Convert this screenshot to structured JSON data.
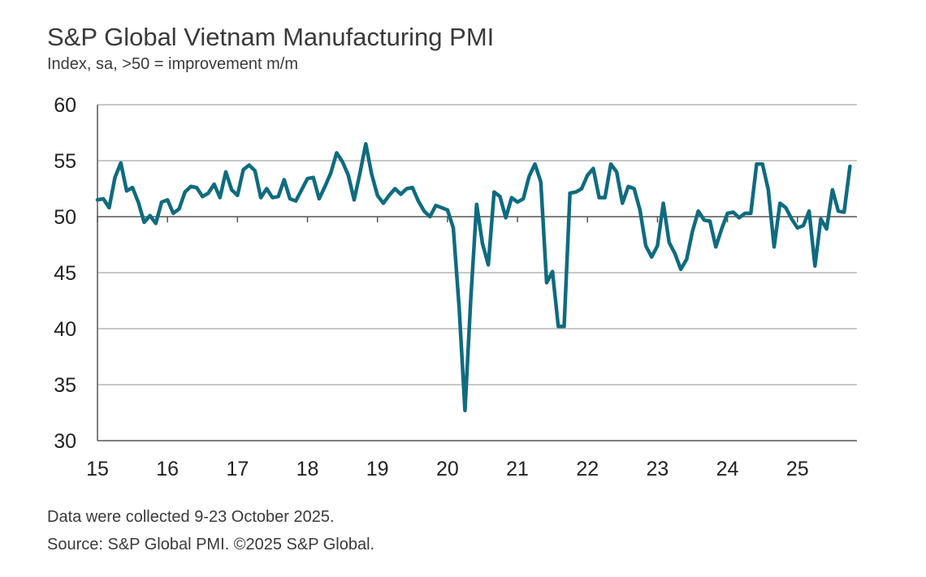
{
  "colors": {
    "line": "#0f6b80",
    "grid": "#c8c8c8",
    "axis": "#555555"
  },
  "chart_data": {
    "type": "line",
    "title": "S&P Global Vietnam Manufacturing PMI",
    "subtitle": "Index, sa, >50 = improvement m/m",
    "xlabel": "",
    "ylabel": "",
    "ylim": [
      30,
      60
    ],
    "yticks": [
      30,
      35,
      40,
      45,
      50,
      55,
      60
    ],
    "xlim": [
      2015.0,
      2025.85
    ],
    "xticks": [
      {
        "x": 2015,
        "label": "15"
      },
      {
        "x": 2016,
        "label": "16"
      },
      {
        "x": 2017,
        "label": "17"
      },
      {
        "x": 2018,
        "label": "18"
      },
      {
        "x": 2019,
        "label": "19"
      },
      {
        "x": 2020,
        "label": "20"
      },
      {
        "x": 2021,
        "label": "21"
      },
      {
        "x": 2022,
        "label": "22"
      },
      {
        "x": 2023,
        "label": "23"
      },
      {
        "x": 2024,
        "label": "24"
      },
      {
        "x": 2025,
        "label": "25"
      }
    ],
    "reference_line": 50,
    "grid": true,
    "series": [
      {
        "name": "Vietnam Manufacturing PMI",
        "start_year": 2015,
        "start_month": 1,
        "values": [
          51.5,
          51.6,
          50.8,
          53.5,
          54.8,
          52.3,
          52.6,
          51.3,
          49.5,
          50.1,
          49.4,
          51.3,
          51.5,
          50.3,
          50.7,
          52.2,
          52.7,
          52.6,
          51.8,
          52.1,
          52.9,
          51.7,
          54.0,
          52.4,
          51.9,
          54.2,
          54.6,
          54.1,
          51.7,
          52.5,
          51.7,
          51.8,
          53.3,
          51.6,
          51.4,
          52.4,
          53.4,
          53.5,
          51.6,
          52.7,
          53.9,
          55.7,
          54.9,
          53.7,
          51.5,
          53.9,
          56.5,
          53.8,
          51.9,
          51.2,
          51.9,
          52.5,
          52.0,
          52.5,
          52.6,
          51.4,
          50.5,
          50.0,
          51.0,
          50.8,
          50.6,
          49.0,
          41.9,
          32.7,
          42.7,
          51.1,
          47.6,
          45.7,
          52.2,
          51.8,
          49.9,
          51.7,
          51.3,
          51.6,
          53.6,
          54.7,
          53.1,
          44.1,
          45.1,
          40.2,
          40.2,
          52.1,
          52.2,
          52.5,
          53.7,
          54.3,
          51.7,
          51.7,
          54.7,
          54.0,
          51.2,
          52.7,
          52.5,
          50.6,
          47.4,
          46.4,
          47.4,
          51.2,
          47.7,
          46.7,
          45.3,
          46.2,
          48.7,
          50.5,
          49.7,
          49.6,
          47.3,
          48.9,
          50.3,
          50.4,
          49.9,
          50.3,
          50.3,
          54.7,
          54.7,
          52.4,
          47.3,
          51.2,
          50.8,
          49.8,
          49.0,
          49.2,
          50.5,
          45.6,
          49.8,
          48.9,
          52.4,
          50.5,
          50.4,
          54.5
        ]
      }
    ]
  },
  "footer": {
    "note": "Data were collected 9-23 October 2025.",
    "source": "Source: S&P Global PMI. ©2025 S&P Global."
  }
}
